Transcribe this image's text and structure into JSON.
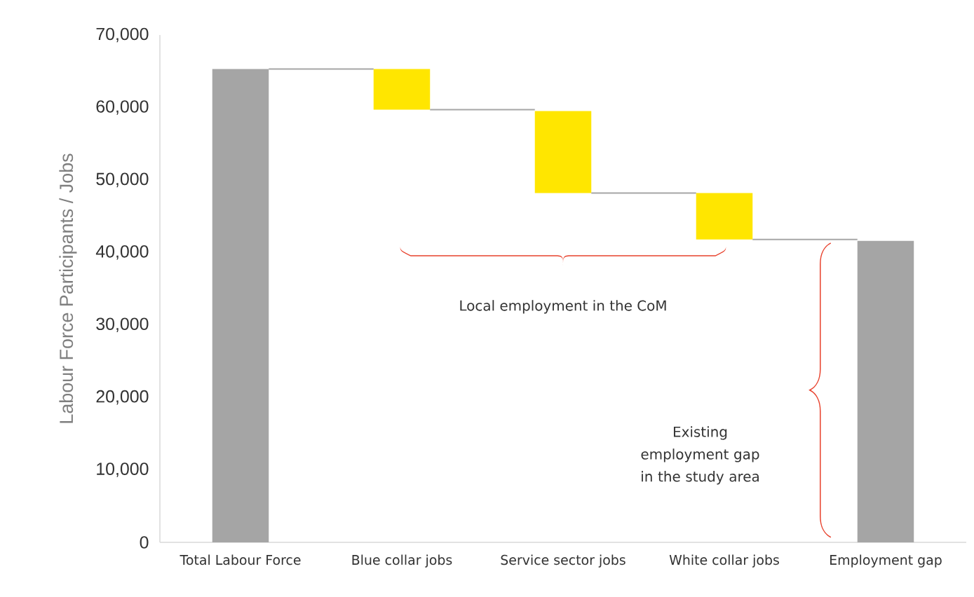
{
  "chart_data": {
    "type": "bar",
    "ylabel": "Labour Force Participants / Jobs",
    "categories": [
      "Total Labour Force",
      "Blue collar jobs",
      "Service sector jobs",
      "White collar jobs",
      "Employment gap"
    ],
    "base": [
      0,
      59700,
      48200,
      41800,
      0
    ],
    "values": [
      65300,
      5600,
      11300,
      6400,
      41600
    ],
    "colors": [
      "#a5a5a5",
      "#ffe600",
      "#ffe600",
      "#ffe600",
      "#a5a5a5"
    ],
    "ylim": [
      0,
      70000
    ],
    "yticks": [
      {
        "value": 0,
        "label": "0"
      },
      {
        "value": 10000,
        "label": "10,000"
      },
      {
        "value": 20000,
        "label": "20,000"
      },
      {
        "value": 30000,
        "label": "30,000"
      },
      {
        "value": 40000,
        "label": "40,000"
      },
      {
        "value": 50000,
        "label": "50,000"
      },
      {
        "value": 60000,
        "label": "60,000"
      },
      {
        "value": 70000,
        "label": "70,000"
      }
    ],
    "annotations": [
      "Local employment in the CoM",
      "Existing employment gap in the study area"
    ]
  }
}
